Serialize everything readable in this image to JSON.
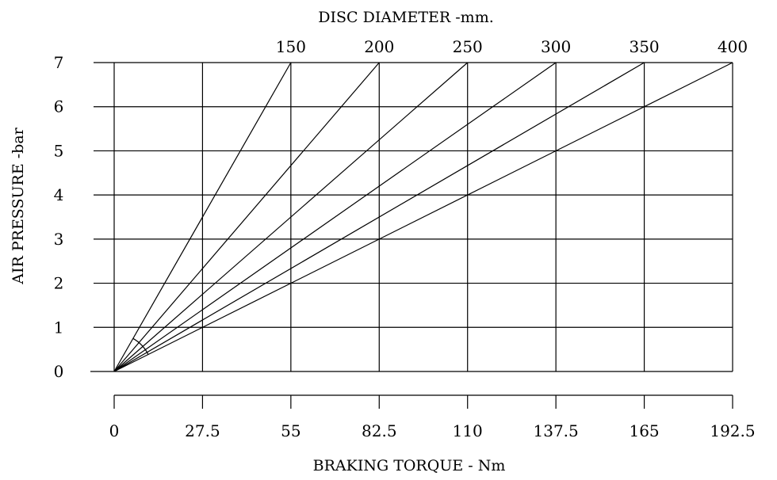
{
  "chart_data": {
    "type": "line",
    "title": "DISC DIAMETER -mm.",
    "xlabel": "BRAKING TORQUE  -  Nm",
    "ylabel": "AIR PRESSURE  -bar",
    "x_ticks": [
      "0",
      "27.5",
      "55",
      "82.5",
      "110",
      "137.5",
      "165",
      "192.5"
    ],
    "y_ticks": [
      "0",
      "1",
      "2",
      "3",
      "4",
      "5",
      "6",
      "7"
    ],
    "top_ticks": [
      "150",
      "200",
      "250",
      "300",
      "350",
      "400"
    ],
    "xlim": [
      0,
      192.5
    ],
    "ylim": [
      0,
      7
    ],
    "grid": true,
    "series": [
      {
        "name": "150",
        "x": [
          0,
          55
        ],
        "y": [
          0,
          7
        ]
      },
      {
        "name": "200",
        "x": [
          0,
          82.5
        ],
        "y": [
          0,
          7
        ]
      },
      {
        "name": "250",
        "x": [
          0,
          110
        ],
        "y": [
          0,
          7
        ]
      },
      {
        "name": "300",
        "x": [
          0,
          137.5
        ],
        "y": [
          0,
          7
        ]
      },
      {
        "name": "350",
        "x": [
          0,
          165
        ],
        "y": [
          0,
          7
        ]
      },
      {
        "name": "400",
        "x": [
          0,
          192.5
        ],
        "y": [
          0,
          7
        ]
      }
    ]
  }
}
